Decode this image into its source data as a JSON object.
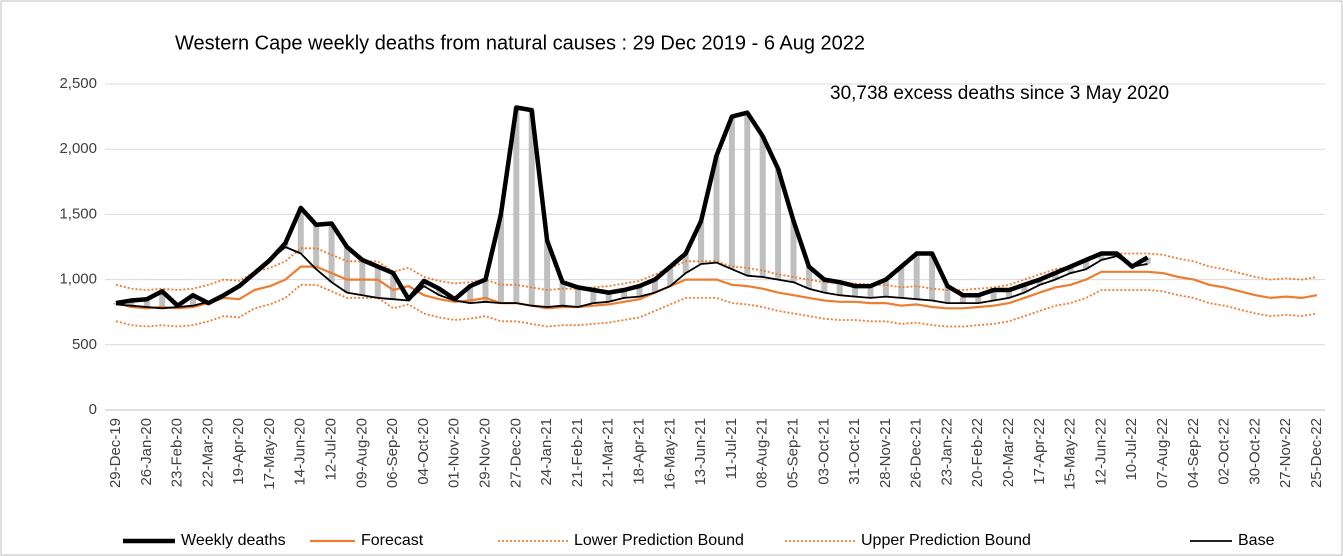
{
  "chart_data": {
    "type": "line",
    "title": "Western Cape weekly deaths from natural causes : 29 Dec 2019 - 6 Aug 2022",
    "annotation": "30,738 excess deaths since 3 May 2020",
    "categories": [
      "29-Dec-19",
      null,
      "26-Jan-20",
      null,
      "23-Feb-20",
      null,
      "22-Mar-20",
      null,
      "19-Apr-20",
      null,
      "17-May-20",
      null,
      "14-Jun-20",
      null,
      "12-Jul-20",
      null,
      "09-Aug-20",
      null,
      "06-Sep-20",
      null,
      "04-Oct-20",
      null,
      "01-Nov-20",
      null,
      "29-Nov-20",
      null,
      "27-Dec-20",
      null,
      "24-Jan-21",
      null,
      "21-Feb-21",
      null,
      "21-Mar-21",
      null,
      "18-Apr-21",
      null,
      "16-May-21",
      null,
      "13-Jun-21",
      null,
      "11-Jul-21",
      null,
      "08-Aug-21",
      null,
      "05-Sep-21",
      null,
      "03-Oct-21",
      null,
      "31-Oct-21",
      null,
      "28-Nov-21",
      null,
      "26-Dec-21",
      null,
      "23-Jan-22",
      null,
      "20-Feb-22",
      null,
      "20-Mar-22",
      null,
      "17-Apr-22",
      null,
      "15-May-22",
      null,
      "12-Jun-22",
      null,
      "10-Jul-22",
      null,
      "07-Aug-22",
      null,
      "04-Sep-22",
      null,
      "02-Oct-22",
      null,
      "30-Oct-22",
      null,
      "27-Nov-22",
      null,
      "25-Dec-22"
    ],
    "series": [
      {
        "name": "Weekly deaths",
        "color": "#000000",
        "dashed": false,
        "values": [
          820,
          840,
          850,
          910,
          800,
          880,
          820,
          880,
          950,
          1050,
          1150,
          1280,
          1550,
          1420,
          1430,
          1250,
          1150,
          1100,
          1050,
          850,
          990,
          930,
          850,
          950,
          1000,
          1500,
          2320,
          2300,
          1300,
          980,
          940,
          920,
          900,
          920,
          950,
          1000,
          1100,
          1200,
          1450,
          1950,
          2250,
          2280,
          2100,
          1850,
          1450,
          1100,
          1000,
          980,
          950,
          950,
          1000,
          1100,
          1200,
          1200,
          950,
          880,
          880,
          920,
          920,
          960,
          1000,
          1050,
          1100,
          1150,
          1200,
          1200,
          1100,
          1170,
          null,
          null,
          null,
          null,
          null,
          null,
          null,
          null,
          null,
          null,
          null
        ]
      },
      {
        "name": "Forecast",
        "color": "#ed7d31",
        "dashed": false,
        "values": [
          820,
          790,
          780,
          790,
          780,
          790,
          820,
          860,
          850,
          920,
          950,
          1000,
          1100,
          1100,
          1050,
          1000,
          1000,
          1000,
          920,
          950,
          880,
          850,
          830,
          840,
          860,
          820,
          820,
          800,
          780,
          790,
          790,
          800,
          810,
          830,
          850,
          900,
          950,
          1000,
          1000,
          1000,
          960,
          950,
          930,
          900,
          880,
          860,
          840,
          830,
          830,
          820,
          820,
          800,
          810,
          790,
          780,
          780,
          790,
          800,
          820,
          860,
          900,
          940,
          960,
          1000,
          1060,
          1060,
          1060,
          1060,
          1050,
          1020,
          1000,
          960,
          940,
          910,
          880,
          860,
          870,
          860,
          880
        ]
      },
      {
        "name": "Lower Prediction Bound",
        "color": "#ed7d31",
        "dashed": true,
        "values": [
          680,
          650,
          640,
          650,
          640,
          650,
          680,
          720,
          710,
          780,
          810,
          860,
          960,
          960,
          910,
          860,
          860,
          860,
          780,
          810,
          740,
          710,
          690,
          700,
          720,
          680,
          680,
          660,
          640,
          650,
          650,
          660,
          670,
          690,
          710,
          760,
          810,
          860,
          860,
          860,
          820,
          810,
          790,
          760,
          740,
          720,
          700,
          690,
          690,
          680,
          680,
          660,
          670,
          650,
          640,
          640,
          650,
          660,
          680,
          720,
          760,
          800,
          820,
          860,
          920,
          920,
          920,
          920,
          910,
          880,
          860,
          820,
          800,
          770,
          740,
          720,
          730,
          720,
          740
        ]
      },
      {
        "name": "Upper Prediction Bound",
        "color": "#ed7d31",
        "dashed": true,
        "values": [
          960,
          930,
          920,
          930,
          920,
          930,
          960,
          1000,
          990,
          1060,
          1090,
          1140,
          1240,
          1240,
          1190,
          1140,
          1140,
          1140,
          1060,
          1090,
          1020,
          990,
          970,
          980,
          1000,
          960,
          960,
          940,
          920,
          930,
          930,
          940,
          950,
          970,
          990,
          1040,
          1090,
          1140,
          1140,
          1140,
          1100,
          1090,
          1070,
          1040,
          1020,
          1000,
          980,
          970,
          970,
          960,
          960,
          940,
          950,
          930,
          920,
          920,
          930,
          940,
          960,
          1000,
          1040,
          1080,
          1100,
          1140,
          1200,
          1200,
          1200,
          1200,
          1190,
          1160,
          1140,
          1100,
          1080,
          1050,
          1020,
          1000,
          1010,
          1000,
          1020
        ]
      },
      {
        "name": "Base",
        "color": "#000000",
        "dashed": false,
        "values": [
          810,
          800,
          790,
          780,
          790,
          800,
          830,
          880,
          950,
          1050,
          1150,
          1250,
          1200,
          1080,
          980,
          900,
          880,
          860,
          850,
          840,
          950,
          880,
          840,
          820,
          830,
          820,
          820,
          800,
          790,
          800,
          790,
          820,
          830,
          860,
          870,
          900,
          950,
          1050,
          1120,
          1130,
          1080,
          1030,
          1020,
          1000,
          980,
          930,
          900,
          880,
          870,
          860,
          870,
          860,
          850,
          840,
          820,
          820,
          820,
          840,
          860,
          900,
          960,
          1000,
          1050,
          1080,
          1150,
          1180,
          1100,
          1120,
          null,
          null,
          null,
          null,
          null,
          null,
          null,
          null,
          null,
          null,
          null
        ]
      }
    ],
    "excess_color": "#bfbfbf",
    "ylim": [
      0,
      2500
    ],
    "yticks": [
      0,
      {
        "value": 500,
        "label": "500"
      },
      {
        "value": 1000,
        "label": "1,000"
      },
      {
        "value": 1500,
        "label": "1,500"
      },
      {
        "value": 2000,
        "label": "2,000"
      },
      {
        "value": 2500,
        "label": "2,500"
      }
    ],
    "grid": true,
    "legend": "bottom"
  }
}
